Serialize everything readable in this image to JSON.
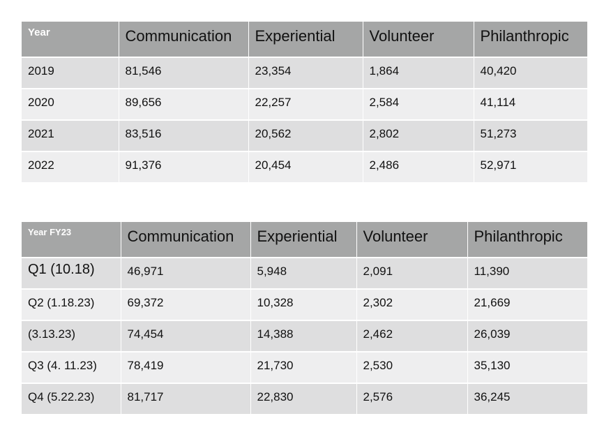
{
  "table1": {
    "headers": [
      "Year",
      "Communication",
      "Experiential",
      "Volunteer",
      "Philanthropic"
    ],
    "rows": [
      [
        "2019",
        "81,546",
        "23,354",
        "1,864",
        "40,420"
      ],
      [
        "2020",
        "89,656",
        "22,257",
        "2,584",
        "41,114"
      ],
      [
        "2021",
        "83,516",
        "20,562",
        "2,802",
        "51,273"
      ],
      [
        "2022",
        "91,376",
        "20,454",
        "2,486",
        "52,971"
      ]
    ]
  },
  "table2": {
    "headers": [
      "Year FY23",
      "Communication",
      "Experiential",
      "Volunteer",
      "Philanthropic"
    ],
    "rows": [
      [
        "Q1 (10.18)",
        "46,971",
        "5,948",
        "2,091",
        "11,390"
      ],
      [
        "Q2 (1.18.23)",
        "69,372",
        "10,328",
        "2,302",
        "21,669"
      ],
      [
        "(3.13.23)",
        "74,454",
        "14,388",
        "2,462",
        "26,039"
      ],
      [
        "Q3 (4. 11.23)",
        "78,419",
        "21,730",
        "2,530",
        "35,130"
      ],
      [
        "Q4 (5.22.23)",
        "81,717",
        "22,830",
        "2,576",
        "36,245"
      ]
    ]
  },
  "colors": {
    "header_bg": "#a5a6a6",
    "row_odd": "#dededf",
    "row_even": "#eeeeef",
    "header_first_text": "#ffffff"
  }
}
